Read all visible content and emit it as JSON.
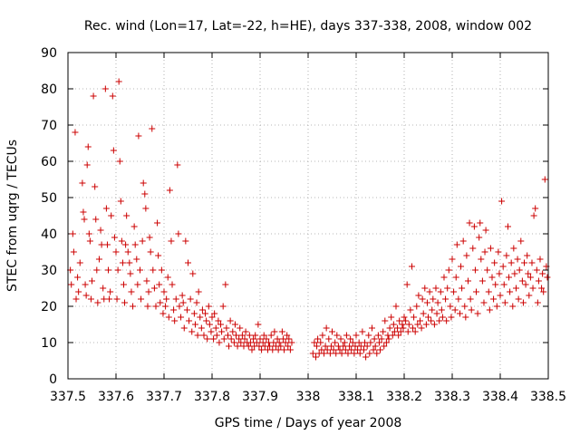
{
  "chart_data": {
    "type": "scatter",
    "title": "Rec. wind (Lon=17, Lat=-22, h=HE), days 337-338, 2008, window 002",
    "xlabel": "GPS time / Days of year 2008",
    "ylabel": "STEC from uqrg / TECUs",
    "xlim": [
      337.5,
      338.5
    ],
    "ylim": [
      0,
      90
    ],
    "grid": true,
    "marker": "+",
    "series_color": "#cc0000",
    "x_ticks": [
      "337.5",
      "337.6",
      "337.7",
      "337.8",
      "337.9",
      "338",
      "338.1",
      "338.2",
      "338.3",
      "338.4",
      "338.5"
    ],
    "y_ticks": [
      "0",
      "10",
      "20",
      "30",
      "40",
      "50",
      "60",
      "70",
      "80",
      "90"
    ],
    "points": [
      [
        337.505,
        30
      ],
      [
        337.507,
        26
      ],
      [
        337.51,
        40
      ],
      [
        337.512,
        35
      ],
      [
        337.515,
        68
      ],
      [
        337.517,
        22
      ],
      [
        337.52,
        28
      ],
      [
        337.522,
        24
      ],
      [
        337.525,
        32
      ],
      [
        337.53,
        54
      ],
      [
        337.532,
        46
      ],
      [
        337.534,
        44
      ],
      [
        337.536,
        26
      ],
      [
        337.538,
        23
      ],
      [
        337.54,
        59
      ],
      [
        337.542,
        64
      ],
      [
        337.544,
        40
      ],
      [
        337.546,
        38
      ],
      [
        337.548,
        22
      ],
      [
        337.55,
        27
      ],
      [
        337.553,
        78
      ],
      [
        337.556,
        53
      ],
      [
        337.558,
        44
      ],
      [
        337.56,
        30
      ],
      [
        337.562,
        21
      ],
      [
        337.565,
        33
      ],
      [
        337.568,
        41
      ],
      [
        337.57,
        37
      ],
      [
        337.573,
        25
      ],
      [
        337.575,
        22
      ],
      [
        337.578,
        80
      ],
      [
        337.58,
        47
      ],
      [
        337.582,
        37
      ],
      [
        337.584,
        30
      ],
      [
        337.586,
        22
      ],
      [
        337.588,
        24
      ],
      [
        337.59,
        45
      ],
      [
        337.593,
        78
      ],
      [
        337.595,
        63
      ],
      [
        337.597,
        39
      ],
      [
        337.6,
        35
      ],
      [
        337.602,
        22
      ],
      [
        337.604,
        30
      ],
      [
        337.606,
        82
      ],
      [
        337.608,
        60
      ],
      [
        337.61,
        49
      ],
      [
        337.612,
        38
      ],
      [
        337.614,
        32
      ],
      [
        337.616,
        26
      ],
      [
        337.618,
        21
      ],
      [
        337.62,
        37
      ],
      [
        337.622,
        45
      ],
      [
        337.625,
        35
      ],
      [
        337.628,
        32
      ],
      [
        337.63,
        29
      ],
      [
        337.632,
        24
      ],
      [
        337.635,
        20
      ],
      [
        337.638,
        42
      ],
      [
        337.64,
        37
      ],
      [
        337.643,
        33
      ],
      [
        337.645,
        26
      ],
      [
        337.647,
        67
      ],
      [
        337.65,
        30
      ],
      [
        337.652,
        22
      ],
      [
        337.655,
        38
      ],
      [
        337.657,
        54
      ],
      [
        337.66,
        51
      ],
      [
        337.662,
        47
      ],
      [
        337.664,
        27
      ],
      [
        337.666,
        20
      ],
      [
        337.668,
        24
      ],
      [
        337.67,
        39
      ],
      [
        337.672,
        35
      ],
      [
        337.675,
        69
      ],
      [
        337.677,
        30
      ],
      [
        337.68,
        25
      ],
      [
        337.683,
        20
      ],
      [
        337.686,
        43
      ],
      [
        337.688,
        34
      ],
      [
        337.69,
        26
      ],
      [
        337.692,
        21
      ],
      [
        337.695,
        30
      ],
      [
        337.698,
        18
      ],
      [
        337.7,
        24
      ],
      [
        337.703,
        20
      ],
      [
        337.705,
        22
      ],
      [
        337.708,
        28
      ],
      [
        337.71,
        17
      ],
      [
        337.712,
        52
      ],
      [
        337.715,
        38
      ],
      [
        337.717,
        26
      ],
      [
        337.72,
        19
      ],
      [
        337.722,
        16
      ],
      [
        337.725,
        22
      ],
      [
        337.728,
        59
      ],
      [
        337.73,
        40
      ],
      [
        337.732,
        20
      ],
      [
        337.735,
        17
      ],
      [
        337.738,
        23
      ],
      [
        337.74,
        21
      ],
      [
        337.742,
        14
      ],
      [
        337.745,
        38
      ],
      [
        337.748,
        19
      ],
      [
        337.75,
        32
      ],
      [
        337.752,
        16
      ],
      [
        337.755,
        22
      ],
      [
        337.758,
        13
      ],
      [
        337.76,
        29
      ],
      [
        337.763,
        18
      ],
      [
        337.765,
        15
      ],
      [
        337.768,
        21
      ],
      [
        337.77,
        12
      ],
      [
        337.772,
        24
      ],
      [
        337.775,
        17
      ],
      [
        337.778,
        14
      ],
      [
        337.78,
        19
      ],
      [
        337.783,
        12
      ],
      [
        337.786,
        18
      ],
      [
        337.788,
        16
      ],
      [
        337.79,
        11
      ],
      [
        337.793,
        20
      ],
      [
        337.795,
        15
      ],
      [
        337.798,
        13
      ],
      [
        337.8,
        17
      ],
      [
        337.803,
        11
      ],
      [
        337.805,
        18
      ],
      [
        337.808,
        14
      ],
      [
        337.81,
        12
      ],
      [
        337.813,
        16
      ],
      [
        337.815,
        10
      ],
      [
        337.818,
        15
      ],
      [
        337.82,
        13
      ],
      [
        337.823,
        20
      ],
      [
        337.825,
        11
      ],
      [
        337.828,
        26
      ],
      [
        337.83,
        14
      ],
      [
        337.833,
        12
      ],
      [
        337.835,
        9
      ],
      [
        337.838,
        16
      ],
      [
        337.84,
        11
      ],
      [
        337.843,
        13
      ],
      [
        337.846,
        10
      ],
      [
        337.848,
        15
      ],
      [
        337.85,
        12
      ],
      [
        337.853,
        9
      ],
      [
        337.856,
        11
      ],
      [
        337.858,
        14
      ],
      [
        337.86,
        10
      ],
      [
        337.863,
        12
      ],
      [
        337.866,
        9
      ],
      [
        337.868,
        11
      ],
      [
        337.87,
        13
      ],
      [
        337.873,
        10
      ],
      [
        337.876,
        9
      ],
      [
        337.878,
        12
      ],
      [
        337.88,
        10
      ],
      [
        337.883,
        8
      ],
      [
        337.886,
        11
      ],
      [
        337.888,
        9
      ],
      [
        337.89,
        12
      ],
      [
        337.893,
        10
      ],
      [
        337.896,
        15
      ],
      [
        337.898,
        9
      ],
      [
        337.9,
        11
      ],
      [
        337.903,
        8
      ],
      [
        337.906,
        10
      ],
      [
        337.908,
        12
      ],
      [
        337.91,
        9
      ],
      [
        337.913,
        11
      ],
      [
        337.916,
        8
      ],
      [
        337.918,
        10
      ],
      [
        337.92,
        9
      ],
      [
        337.923,
        12
      ],
      [
        337.926,
        8
      ],
      [
        337.928,
        10
      ],
      [
        337.93,
        13
      ],
      [
        337.933,
        9
      ],
      [
        337.936,
        11
      ],
      [
        337.938,
        8
      ],
      [
        337.94,
        10
      ],
      [
        337.943,
        9
      ],
      [
        337.946,
        13
      ],
      [
        337.948,
        11
      ],
      [
        337.95,
        8
      ],
      [
        337.953,
        10
      ],
      [
        337.956,
        12
      ],
      [
        337.958,
        9
      ],
      [
        337.96,
        11
      ],
      [
        337.963,
        8
      ],
      [
        337.966,
        10
      ],
      [
        338.01,
        7
      ],
      [
        338.013,
        10
      ],
      [
        338.016,
        6
      ],
      [
        338.018,
        9
      ],
      [
        338.02,
        11
      ],
      [
        338.023,
        7
      ],
      [
        338.026,
        10
      ],
      [
        338.028,
        8
      ],
      [
        338.03,
        12
      ],
      [
        338.033,
        7
      ],
      [
        338.036,
        9
      ],
      [
        338.038,
        14
      ],
      [
        338.04,
        8
      ],
      [
        338.043,
        11
      ],
      [
        338.046,
        7
      ],
      [
        338.048,
        9
      ],
      [
        338.05,
        13
      ],
      [
        338.053,
        8
      ],
      [
        338.056,
        10
      ],
      [
        338.058,
        7
      ],
      [
        338.06,
        12
      ],
      [
        338.063,
        9
      ],
      [
        338.066,
        8
      ],
      [
        338.068,
        11
      ],
      [
        338.07,
        7
      ],
      [
        338.073,
        9
      ],
      [
        338.076,
        10
      ],
      [
        338.078,
        8
      ],
      [
        338.08,
        12
      ],
      [
        338.083,
        7
      ],
      [
        338.086,
        9
      ],
      [
        338.088,
        11
      ],
      [
        338.09,
        8
      ],
      [
        338.093,
        10
      ],
      [
        338.096,
        7
      ],
      [
        338.098,
        9
      ],
      [
        338.1,
        12
      ],
      [
        338.103,
        8
      ],
      [
        338.106,
        10
      ],
      [
        338.108,
        7
      ],
      [
        338.11,
        9
      ],
      [
        338.113,
        13
      ],
      [
        338.116,
        8
      ],
      [
        338.118,
        10
      ],
      [
        338.12,
        6
      ],
      [
        338.123,
        9
      ],
      [
        338.126,
        12
      ],
      [
        338.128,
        7
      ],
      [
        338.13,
        10
      ],
      [
        338.133,
        14
      ],
      [
        338.136,
        8
      ],
      [
        338.138,
        11
      ],
      [
        338.14,
        9
      ],
      [
        338.143,
        7
      ],
      [
        338.146,
        12
      ],
      [
        338.148,
        10
      ],
      [
        338.15,
        8
      ],
      [
        338.153,
        11
      ],
      [
        338.156,
        13
      ],
      [
        338.158,
        9
      ],
      [
        338.16,
        16
      ],
      [
        338.163,
        10
      ],
      [
        338.166,
        12
      ],
      [
        338.168,
        11
      ],
      [
        338.17,
        14
      ],
      [
        338.173,
        17
      ],
      [
        338.176,
        12
      ],
      [
        338.178,
        15
      ],
      [
        338.18,
        13
      ],
      [
        338.183,
        20
      ],
      [
        338.186,
        14
      ],
      [
        338.188,
        12
      ],
      [
        338.19,
        16
      ],
      [
        338.193,
        13
      ],
      [
        338.196,
        15
      ],
      [
        338.198,
        14
      ],
      [
        338.2,
        17
      ],
      [
        338.203,
        16
      ],
      [
        338.206,
        26
      ],
      [
        338.208,
        13
      ],
      [
        338.21,
        15
      ],
      [
        338.213,
        19
      ],
      [
        338.216,
        31
      ],
      [
        338.218,
        14
      ],
      [
        338.22,
        17
      ],
      [
        338.223,
        13
      ],
      [
        338.226,
        20
      ],
      [
        338.228,
        15
      ],
      [
        338.23,
        23
      ],
      [
        338.233,
        16
      ],
      [
        338.236,
        14
      ],
      [
        338.238,
        22
      ],
      [
        338.24,
        18
      ],
      [
        338.243,
        25
      ],
      [
        338.246,
        15
      ],
      [
        338.248,
        21
      ],
      [
        338.25,
        17
      ],
      [
        338.253,
        24
      ],
      [
        338.256,
        16
      ],
      [
        338.258,
        19
      ],
      [
        338.26,
        22
      ],
      [
        338.263,
        15
      ],
      [
        338.266,
        25
      ],
      [
        338.268,
        18
      ],
      [
        338.27,
        21
      ],
      [
        338.273,
        16
      ],
      [
        338.276,
        24
      ],
      [
        338.278,
        19
      ],
      [
        338.28,
        17
      ],
      [
        338.283,
        28
      ],
      [
        338.286,
        22
      ],
      [
        338.288,
        16
      ],
      [
        338.29,
        25
      ],
      [
        338.293,
        30
      ],
      [
        338.296,
        20
      ],
      [
        338.298,
        17
      ],
      [
        338.3,
        33
      ],
      [
        338.303,
        24
      ],
      [
        338.306,
        19
      ],
      [
        338.308,
        28
      ],
      [
        338.31,
        37
      ],
      [
        338.313,
        22
      ],
      [
        338.316,
        18
      ],
      [
        338.318,
        31
      ],
      [
        338.32,
        25
      ],
      [
        338.323,
        38
      ],
      [
        338.326,
        20
      ],
      [
        338.328,
        17
      ],
      [
        338.33,
        34
      ],
      [
        338.333,
        27
      ],
      [
        338.336,
        43
      ],
      [
        338.338,
        22
      ],
      [
        338.34,
        19
      ],
      [
        338.343,
        36
      ],
      [
        338.346,
        42
      ],
      [
        338.348,
        30
      ],
      [
        338.35,
        24
      ],
      [
        338.353,
        18
      ],
      [
        338.356,
        39
      ],
      [
        338.358,
        43
      ],
      [
        338.36,
        33
      ],
      [
        338.363,
        27
      ],
      [
        338.366,
        21
      ],
      [
        338.368,
        35
      ],
      [
        338.37,
        41
      ],
      [
        338.373,
        30
      ],
      [
        338.376,
        24
      ],
      [
        338.378,
        19
      ],
      [
        338.38,
        36
      ],
      [
        338.383,
        28
      ],
      [
        338.386,
        22
      ],
      [
        338.388,
        32
      ],
      [
        338.39,
        26
      ],
      [
        338.393,
        20
      ],
      [
        338.396,
        35
      ],
      [
        338.398,
        29
      ],
      [
        338.4,
        23
      ],
      [
        338.403,
        49
      ],
      [
        338.406,
        31
      ],
      [
        338.408,
        26
      ],
      [
        338.41,
        21
      ],
      [
        338.413,
        34
      ],
      [
        338.416,
        42
      ],
      [
        338.418,
        28
      ],
      [
        338.42,
        24
      ],
      [
        338.423,
        32
      ],
      [
        338.426,
        20
      ],
      [
        338.428,
        36
      ],
      [
        338.43,
        29
      ],
      [
        338.433,
        25
      ],
      [
        338.436,
        33
      ],
      [
        338.438,
        22
      ],
      [
        338.44,
        30
      ],
      [
        338.443,
        38
      ],
      [
        338.446,
        27
      ],
      [
        338.448,
        21
      ],
      [
        338.45,
        32
      ],
      [
        338.453,
        26
      ],
      [
        338.456,
        34
      ],
      [
        338.458,
        29
      ],
      [
        338.46,
        23
      ],
      [
        338.463,
        28
      ],
      [
        338.466,
        32
      ],
      [
        338.468,
        25
      ],
      [
        338.47,
        45
      ],
      [
        338.473,
        47
      ],
      [
        338.476,
        30
      ],
      [
        338.478,
        21
      ],
      [
        338.48,
        27
      ],
      [
        338.483,
        33
      ],
      [
        338.486,
        25
      ],
      [
        338.488,
        29
      ],
      [
        338.49,
        24
      ],
      [
        338.493,
        55
      ],
      [
        338.496,
        31
      ],
      [
        338.498,
        28
      ]
    ]
  }
}
